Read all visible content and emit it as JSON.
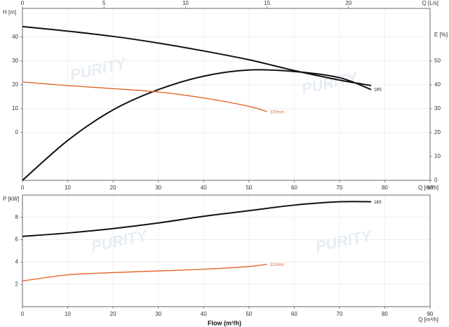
{
  "watermark": "PURITY",
  "chart_data": [
    {
      "type": "line",
      "ylabel": "H [m]",
      "y2label": "E [%]",
      "xlabel": "Q [m³/h]",
      "x2label": "Q [L/s]",
      "xlim": [
        0,
        90
      ],
      "xticks": [
        0,
        10,
        20,
        30,
        40,
        50,
        60,
        70,
        80,
        90
      ],
      "x2lim": [
        0,
        25
      ],
      "x2ticks": [
        0,
        5,
        10,
        15,
        20
      ],
      "ylim": [
        -20,
        52
      ],
      "yticks": [
        0,
        10,
        20,
        30,
        40
      ],
      "y2lim": [
        0,
        72
      ],
      "y2ticks": [
        0,
        10,
        20,
        30,
        40,
        50
      ],
      "grid": true,
      "series": [
        {
          "name": "18S",
          "color": "#111111",
          "x": [
            0,
            10,
            20,
            30,
            40,
            50,
            60,
            70,
            77
          ],
          "values": [
            44.4,
            42.5,
            40.3,
            37.5,
            34.2,
            30.5,
            26,
            22,
            19.7
          ]
        },
        {
          "color": "#111111",
          "axis": "y2",
          "x": [
            0,
            10,
            20,
            30,
            40,
            50,
            60,
            70,
            77
          ],
          "values": [
            0,
            16.7,
            29.5,
            38,
            43.6,
            46.2,
            45.6,
            43,
            38
          ]
        },
        {
          "name": "120mm",
          "color": "#e2692f",
          "x": [
            0,
            10,
            20,
            30,
            40,
            50,
            54
          ],
          "values": [
            21.2,
            19.7,
            18.4,
            17,
            14.5,
            11,
            8.8
          ]
        }
      ]
    },
    {
      "type": "line",
      "ylabel": "P [kW]",
      "xlabel": "Q [m³/h]",
      "xtitle": "Flow (m³/h)",
      "xlim": [
        0,
        90
      ],
      "xticks": [
        0,
        10,
        20,
        30,
        40,
        50,
        60,
        70,
        80,
        90
      ],
      "ylim": [
        0,
        10
      ],
      "yticks": [
        2,
        4,
        6,
        8
      ],
      "grid": true,
      "series": [
        {
          "name": "18S",
          "color": "#111111",
          "x": [
            0,
            10,
            20,
            30,
            40,
            50,
            60,
            70,
            77
          ],
          "values": [
            6.3,
            6.6,
            7.0,
            7.5,
            8.1,
            8.6,
            9.1,
            9.4,
            9.4
          ]
        },
        {
          "name": "120mm",
          "color": "#e2692f",
          "x": [
            0,
            10,
            20,
            30,
            40,
            50,
            54
          ],
          "values": [
            2.3,
            2.85,
            3.05,
            3.2,
            3.35,
            3.6,
            3.8
          ]
        }
      ]
    }
  ]
}
